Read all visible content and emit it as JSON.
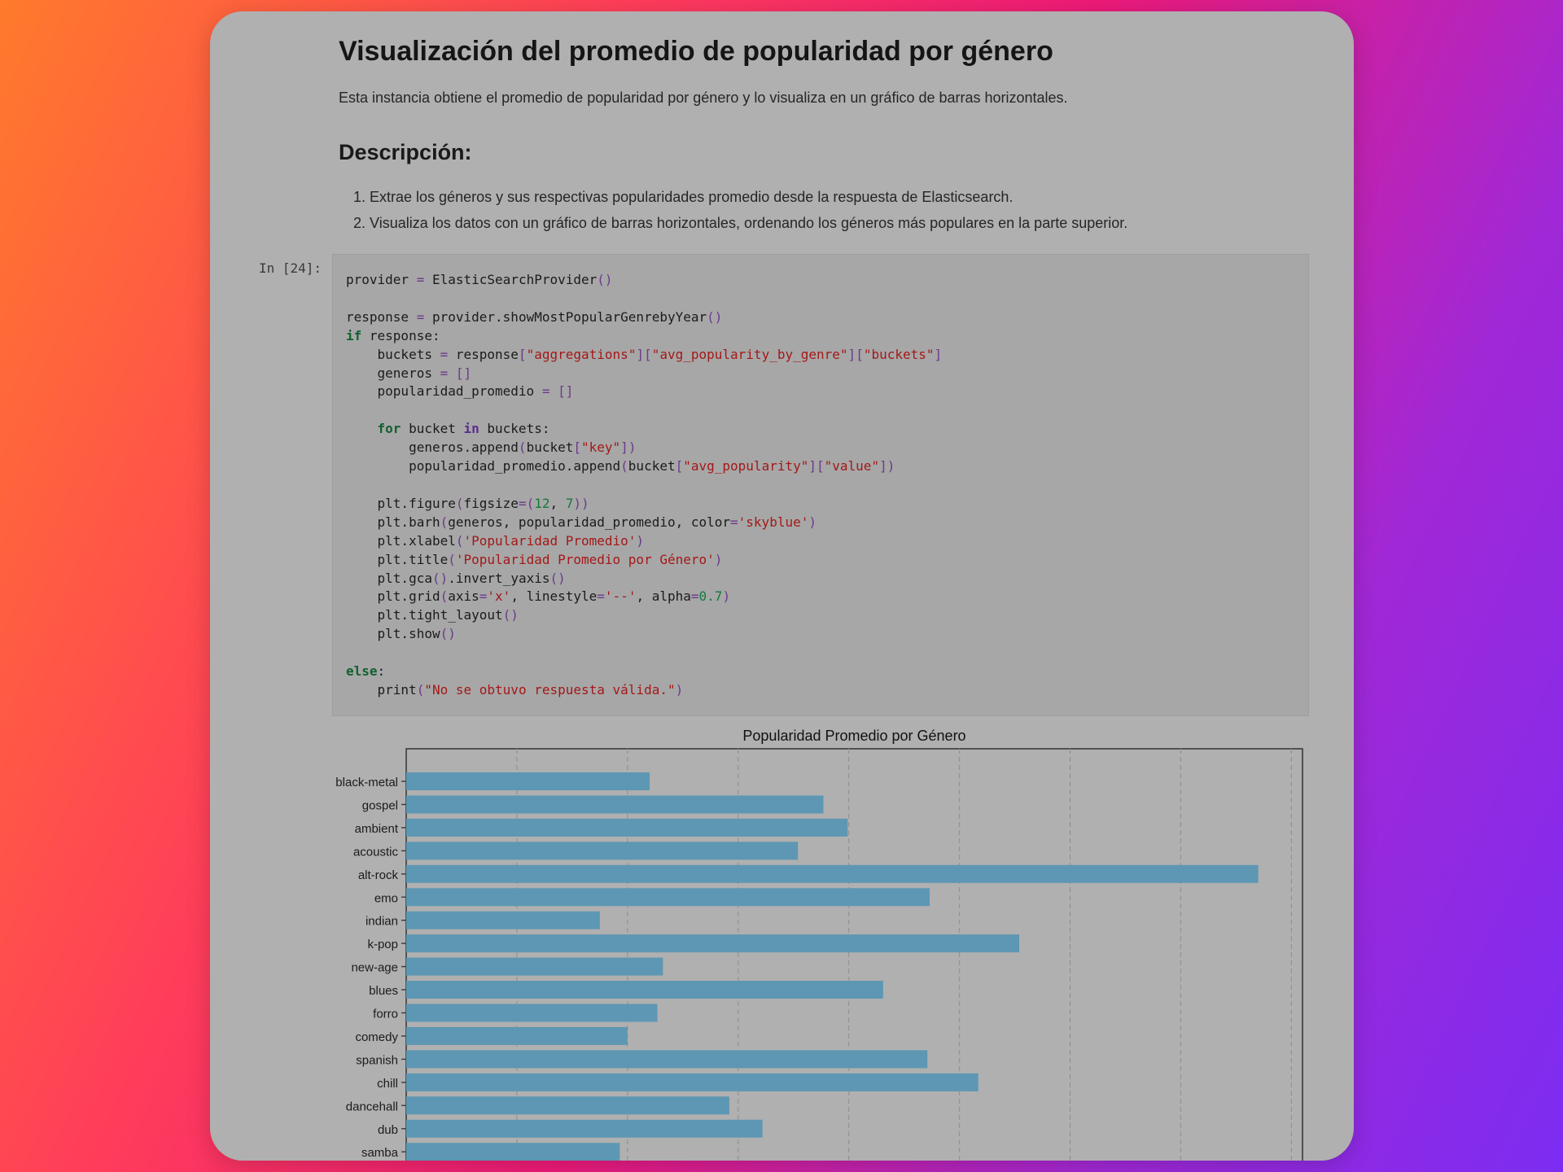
{
  "notebook": {
    "title": "Visualización del promedio de popularidad por género",
    "intro": "Esta instancia obtiene el promedio de popularidad por género y lo visualiza en un gráfico de barras horizontales.",
    "section_heading": "Descripción:",
    "steps": [
      "1. Extrae los géneros y sus respectivas popularidades promedio desde la respuesta de Elasticsearch.",
      "2. Visualiza los datos con un gráfico de barras horizontales, ordenando los géneros más populares en la parte superior."
    ],
    "cell_prompt": "In [24]:",
    "code_lines": [
      "provider = ElasticSearchProvider()",
      "",
      "response = provider.showMostPopularGenrebyYear()",
      "if response:",
      "    buckets = response[\"aggregations\"][\"avg_popularity_by_genre\"][\"buckets\"]",
      "    generos = []",
      "    popularidad_promedio = []",
      "",
      "    for bucket in buckets:",
      "        generos.append(bucket[\"key\"])",
      "        popularidad_promedio.append(bucket[\"avg_popularity\"][\"value\"])",
      "",
      "    plt.figure(figsize=(12, 7))",
      "    plt.barh(generos, popularidad_promedio, color='skyblue')",
      "    plt.xlabel('Popularidad Promedio')",
      "    plt.title('Popularidad Promedio por Género')",
      "    plt.gca().invert_yaxis()",
      "    plt.grid(axis='x', linestyle='--', alpha=0.7)",
      "    plt.tight_layout()",
      "    plt.show()",
      "",
      "else:",
      "    print(\"No se obtuvo respuesta válida.\")"
    ]
  },
  "chart_data": {
    "type": "bar",
    "orientation": "horizontal",
    "title": "Popularidad Promedio por Género",
    "categories": [
      "black-metal",
      "gospel",
      "ambient",
      "acoustic",
      "alt-rock",
      "emo",
      "indian",
      "k-pop",
      "new-age",
      "blues",
      "forro",
      "comedy",
      "spanish",
      "chill",
      "dancehall",
      "dub",
      "samba"
    ],
    "values": [
      22,
      37.7,
      39.9,
      35.4,
      77,
      47.3,
      17.5,
      55.4,
      23.2,
      43.1,
      22.7,
      20,
      47.1,
      51.7,
      29.2,
      32.2,
      19.3
    ],
    "xlim": [
      0,
      81
    ],
    "grid": "x",
    "bar_color": "#5d97b3",
    "axis_color": "#3a3a3a",
    "grid_color": "#939393"
  },
  "colors": {
    "frame_bg": "#b0b0b0",
    "code_bg": "#a7a7a7"
  }
}
